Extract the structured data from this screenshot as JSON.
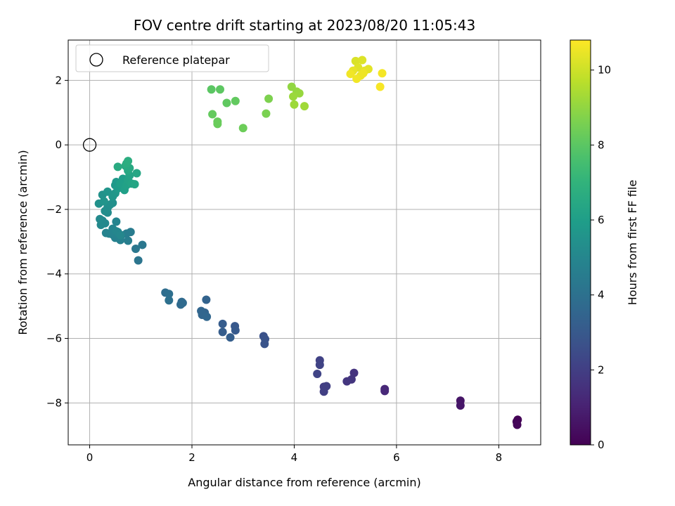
{
  "chart_data": {
    "type": "scatter",
    "title": "FOV centre drift starting at 2023/08/20 11:05:43",
    "xlabel": "Angular distance from reference (arcmin)",
    "ylabel": "Rotation from reference (arcmin)",
    "xlim": [
      -0.42,
      8.82
    ],
    "ylim": [
      -9.3,
      3.25
    ],
    "xticks": [
      0,
      2,
      4,
      6,
      8
    ],
    "yticks": [
      -8,
      -6,
      -4,
      -2,
      0,
      2
    ],
    "grid": true,
    "legend": {
      "position": "top-left",
      "label": "Reference platepar"
    },
    "reference_point": {
      "x": 0,
      "y": 0
    },
    "colorbar": {
      "label": "Hours from first FF file",
      "range": [
        0,
        10.8
      ],
      "ticks": [
        0,
        2,
        4,
        6,
        8,
        10
      ],
      "colormap": "viridis"
    },
    "series": [
      {
        "points": [
          {
            "x": 8.37,
            "y": -8.52,
            "c": 0.05
          },
          {
            "x": 8.35,
            "y": -8.58,
            "c": 0.1
          },
          {
            "x": 8.36,
            "y": -8.68,
            "c": 0.15
          },
          {
            "x": 7.25,
            "y": -7.93,
            "c": 0.6
          },
          {
            "x": 7.25,
            "y": -8.08,
            "c": 0.65
          },
          {
            "x": 5.77,
            "y": -7.57,
            "c": 1.2
          },
          {
            "x": 5.77,
            "y": -7.63,
            "c": 1.25
          },
          {
            "x": 5.17,
            "y": -7.07,
            "c": 1.6
          },
          {
            "x": 5.12,
            "y": -7.27,
            "c": 1.65
          },
          {
            "x": 5.03,
            "y": -7.33,
            "c": 1.7
          },
          {
            "x": 4.58,
            "y": -7.5,
            "c": 1.95
          },
          {
            "x": 4.63,
            "y": -7.48,
            "c": 2.0
          },
          {
            "x": 4.58,
            "y": -7.65,
            "c": 2.0
          },
          {
            "x": 4.5,
            "y": -6.68,
            "c": 2.1
          },
          {
            "x": 4.5,
            "y": -6.82,
            "c": 2.15
          },
          {
            "x": 4.45,
            "y": -7.1,
            "c": 2.2
          },
          {
            "x": 3.4,
            "y": -5.93,
            "c": 2.7
          },
          {
            "x": 3.43,
            "y": -6.02,
            "c": 2.75
          },
          {
            "x": 3.42,
            "y": -6.17,
            "c": 2.8
          },
          {
            "x": 2.84,
            "y": -5.62,
            "c": 3.0
          },
          {
            "x": 2.85,
            "y": -5.75,
            "c": 3.05
          },
          {
            "x": 2.6,
            "y": -5.55,
            "c": 3.1
          },
          {
            "x": 2.6,
            "y": -5.8,
            "c": 3.15
          },
          {
            "x": 2.75,
            "y": -5.97,
            "c": 3.2
          },
          {
            "x": 2.28,
            "y": -4.8,
            "c": 3.4
          },
          {
            "x": 2.25,
            "y": -5.2,
            "c": 3.45
          },
          {
            "x": 2.18,
            "y": -5.15,
            "c": 3.5
          },
          {
            "x": 2.2,
            "y": -5.27,
            "c": 3.5
          },
          {
            "x": 2.29,
            "y": -5.33,
            "c": 3.55
          },
          {
            "x": 1.8,
            "y": -4.87,
            "c": 3.7
          },
          {
            "x": 1.78,
            "y": -4.95,
            "c": 3.75
          },
          {
            "x": 1.82,
            "y": -4.9,
            "c": 3.75
          },
          {
            "x": 1.48,
            "y": -4.58,
            "c": 3.85
          },
          {
            "x": 1.55,
            "y": -4.62,
            "c": 3.9
          },
          {
            "x": 1.55,
            "y": -4.82,
            "c": 3.95
          },
          {
            "x": 0.95,
            "y": -3.58,
            "c": 4.2
          },
          {
            "x": 0.9,
            "y": -3.22,
            "c": 4.3
          },
          {
            "x": 1.03,
            "y": -3.1,
            "c": 4.3
          },
          {
            "x": 0.8,
            "y": -2.7,
            "c": 4.5
          },
          {
            "x": 0.72,
            "y": -2.75,
            "c": 4.55
          },
          {
            "x": 0.75,
            "y": -2.97,
            "c": 4.6
          },
          {
            "x": 0.62,
            "y": -2.8,
            "c": 4.65
          },
          {
            "x": 0.6,
            "y": -2.95,
            "c": 4.7
          },
          {
            "x": 0.5,
            "y": -2.88,
            "c": 4.75
          },
          {
            "x": 0.45,
            "y": -2.78,
            "c": 4.8
          },
          {
            "x": 0.38,
            "y": -2.75,
            "c": 4.85
          },
          {
            "x": 0.32,
            "y": -2.73,
            "c": 4.85
          },
          {
            "x": 0.45,
            "y": -2.6,
            "c": 4.9
          },
          {
            "x": 0.52,
            "y": -2.38,
            "c": 4.9
          },
          {
            "x": 0.52,
            "y": -2.68,
            "c": 4.95
          },
          {
            "x": 0.55,
            "y": -2.7,
            "c": 4.95
          },
          {
            "x": 0.6,
            "y": -2.8,
            "c": 5.0
          },
          {
            "x": 0.25,
            "y": -2.35,
            "c": 5.0
          },
          {
            "x": 0.3,
            "y": -2.43,
            "c": 5.05
          },
          {
            "x": 0.22,
            "y": -2.48,
            "c": 5.1
          },
          {
            "x": 0.2,
            "y": -2.3,
            "c": 5.15
          },
          {
            "x": 0.35,
            "y": -2.1,
            "c": 5.2
          },
          {
            "x": 0.3,
            "y": -2.05,
            "c": 5.25
          },
          {
            "x": 0.35,
            "y": -1.95,
            "c": 5.3
          },
          {
            "x": 0.4,
            "y": -1.85,
            "c": 5.35
          },
          {
            "x": 0.45,
            "y": -1.8,
            "c": 5.4
          },
          {
            "x": 0.18,
            "y": -1.82,
            "c": 5.45
          },
          {
            "x": 0.25,
            "y": -1.55,
            "c": 5.5
          },
          {
            "x": 0.28,
            "y": -1.75,
            "c": 5.55
          },
          {
            "x": 0.35,
            "y": -1.45,
            "c": 5.6
          },
          {
            "x": 0.45,
            "y": -1.6,
            "c": 5.65
          },
          {
            "x": 0.5,
            "y": -1.5,
            "c": 5.7
          },
          {
            "x": 0.5,
            "y": -1.25,
            "c": 5.75
          },
          {
            "x": 0.52,
            "y": -1.15,
            "c": 5.8
          },
          {
            "x": 0.55,
            "y": -1.35,
            "c": 5.85
          },
          {
            "x": 0.6,
            "y": -1.3,
            "c": 5.9
          },
          {
            "x": 0.65,
            "y": -1.05,
            "c": 6.0
          },
          {
            "x": 0.6,
            "y": -1.2,
            "c": 6.05
          },
          {
            "x": 0.68,
            "y": -1.4,
            "c": 6.1
          },
          {
            "x": 0.72,
            "y": -1.25,
            "c": 6.15
          },
          {
            "x": 0.75,
            "y": -1.1,
            "c": 6.2
          },
          {
            "x": 0.78,
            "y": -0.95,
            "c": 6.25
          },
          {
            "x": 0.82,
            "y": -1.2,
            "c": 6.3
          },
          {
            "x": 0.88,
            "y": -1.22,
            "c": 6.35
          },
          {
            "x": 0.92,
            "y": -0.88,
            "c": 6.4
          },
          {
            "x": 0.75,
            "y": -0.8,
            "c": 6.45
          },
          {
            "x": 0.78,
            "y": -0.72,
            "c": 6.5
          },
          {
            "x": 0.7,
            "y": -0.65,
            "c": 6.55
          },
          {
            "x": 0.55,
            "y": -0.68,
            "c": 6.6
          },
          {
            "x": 0.72,
            "y": -0.58,
            "c": 6.65
          },
          {
            "x": 0.75,
            "y": -0.5,
            "c": 6.7
          },
          {
            "x": 2.38,
            "y": 1.72,
            "c": 8.0
          },
          {
            "x": 2.55,
            "y": 1.72,
            "c": 8.05
          },
          {
            "x": 2.68,
            "y": 1.3,
            "c": 8.1
          },
          {
            "x": 2.85,
            "y": 1.36,
            "c": 8.15
          },
          {
            "x": 2.4,
            "y": 0.95,
            "c": 8.2
          },
          {
            "x": 2.5,
            "y": 0.72,
            "c": 8.25
          },
          {
            "x": 2.5,
            "y": 0.65,
            "c": 8.3
          },
          {
            "x": 3.0,
            "y": 0.52,
            "c": 8.35
          },
          {
            "x": 3.45,
            "y": 0.97,
            "c": 8.6
          },
          {
            "x": 3.5,
            "y": 1.43,
            "c": 8.65
          },
          {
            "x": 3.95,
            "y": 1.8,
            "c": 9.0
          },
          {
            "x": 4.05,
            "y": 1.65,
            "c": 9.05
          },
          {
            "x": 4.1,
            "y": 1.6,
            "c": 9.1
          },
          {
            "x": 3.98,
            "y": 1.5,
            "c": 9.15
          },
          {
            "x": 4.0,
            "y": 1.25,
            "c": 9.2
          },
          {
            "x": 4.2,
            "y": 1.2,
            "c": 9.25
          },
          {
            "x": 5.2,
            "y": 2.6,
            "c": 10.2
          },
          {
            "x": 5.33,
            "y": 2.63,
            "c": 10.25
          },
          {
            "x": 5.25,
            "y": 2.4,
            "c": 10.3
          },
          {
            "x": 5.45,
            "y": 2.35,
            "c": 10.35
          },
          {
            "x": 5.38,
            "y": 2.3,
            "c": 10.4
          },
          {
            "x": 5.15,
            "y": 2.3,
            "c": 10.45
          },
          {
            "x": 5.3,
            "y": 2.15,
            "c": 10.5
          },
          {
            "x": 5.35,
            "y": 2.22,
            "c": 10.55
          },
          {
            "x": 5.1,
            "y": 2.2,
            "c": 10.6
          },
          {
            "x": 5.22,
            "y": 2.05,
            "c": 10.6
          },
          {
            "x": 5.72,
            "y": 2.22,
            "c": 10.65
          },
          {
            "x": 5.68,
            "y": 1.8,
            "c": 10.7
          }
        ]
      }
    ]
  }
}
